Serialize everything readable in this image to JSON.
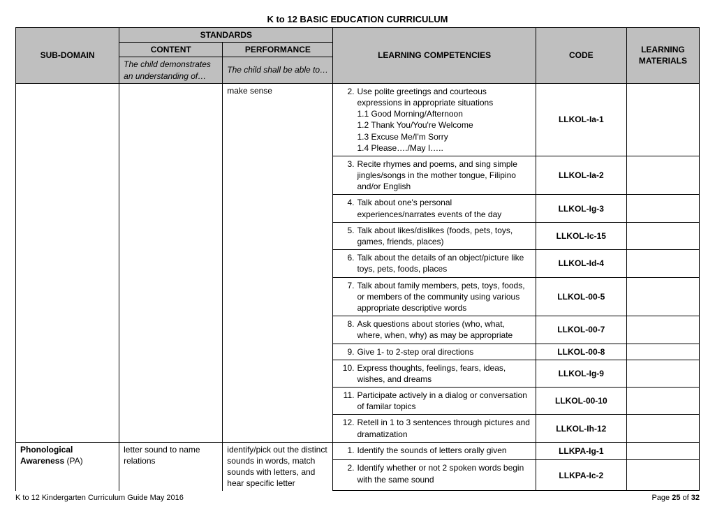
{
  "title": "K to 12 BASIC EDUCATION CURRICULUM",
  "header": {
    "subdomain": "SUB-DOMAIN",
    "standards": "STANDARDS",
    "content": "CONTENT",
    "performance": "PERFORMANCE",
    "competencies": "LEARNING COMPETENCIES",
    "code": "CODE",
    "materials": "LEARNING MATERIALS",
    "content_sub": "The child demonstrates an understanding of…",
    "performance_sub": "The child shall be able to…"
  },
  "top_perf": "make sense",
  "rows": [
    {
      "num": "2.",
      "text": "Use polite greetings and courteous expressions in appropriate situations",
      "sub": [
        "1.1 Good Morning/Afternoon",
        "1.2 Thank You/You're Welcome",
        "1.3 Excuse Me/I'm Sorry",
        "1.4 Please…./May I….."
      ],
      "code": "LLKOL-Ia-1"
    },
    {
      "num": "3.",
      "text": "Recite rhymes and poems, and sing simple jingles/songs in the mother tongue, Filipino and/or English",
      "code": "LLKOL-Ia-2"
    },
    {
      "num": "4.",
      "text": "Talk about one's personal experiences/narrates events of the day",
      "code": "LLKOL-Ig-3"
    },
    {
      "num": "5.",
      "text": "Talk about likes/dislikes (foods, pets, toys, games, friends, places)",
      "code": "LLKOL-Ic-15"
    },
    {
      "num": "6.",
      "text": "Talk about the details of an object/picture like toys, pets, foods, places",
      "code": "LLKOL-Id-4"
    },
    {
      "num": "7.",
      "text": "Talk about family members, pets, toys, foods, or members of the community using various appropriate descriptive words",
      "code": "LLKOL-00-5"
    },
    {
      "num": "8.",
      "text": "Ask questions about stories (who, what, where, when, why) as may be appropriate",
      "code": "LLKOL-00-7"
    },
    {
      "num": "9.",
      "text": "Give 1- to 2-step oral directions",
      "code": "LLKOL-00-8"
    },
    {
      "num": "10.",
      "text": "Express thoughts, feelings, fears, ideas, wishes, and dreams",
      "code": "LLKOL-Ig-9"
    },
    {
      "num": "11.",
      "text": "Participate actively in a dialog or conversation of familar topics",
      "code": "LLKOL-00-10"
    },
    {
      "num": "12.",
      "text": "Retell in 1 to 3 sentences through pictures and dramatization",
      "code": "LLKOL-Ih-12"
    }
  ],
  "pa": {
    "subdomain_b": "Phonological Awareness",
    "subdomain_n": " (PA)",
    "content": "letter sound to name relations",
    "performance": "identify/pick out  the distinct  sounds in words, match sounds with letters, and hear specific letter",
    "rows": [
      {
        "num": "1.",
        "text": "Identify the sounds  of  letters orally given",
        "code": "LLKPA-Ig-1"
      },
      {
        "num": "2.",
        "text": "Identify whether or not 2 spoken words begin with the same sound",
        "code": "LLKPA-Ic-2"
      }
    ]
  },
  "footer": {
    "left": "K to 12 Kindergarten Curriculum Guide May 2016",
    "right_a": "Page ",
    "right_b": "25",
    "right_c": " of ",
    "right_d": "32"
  }
}
